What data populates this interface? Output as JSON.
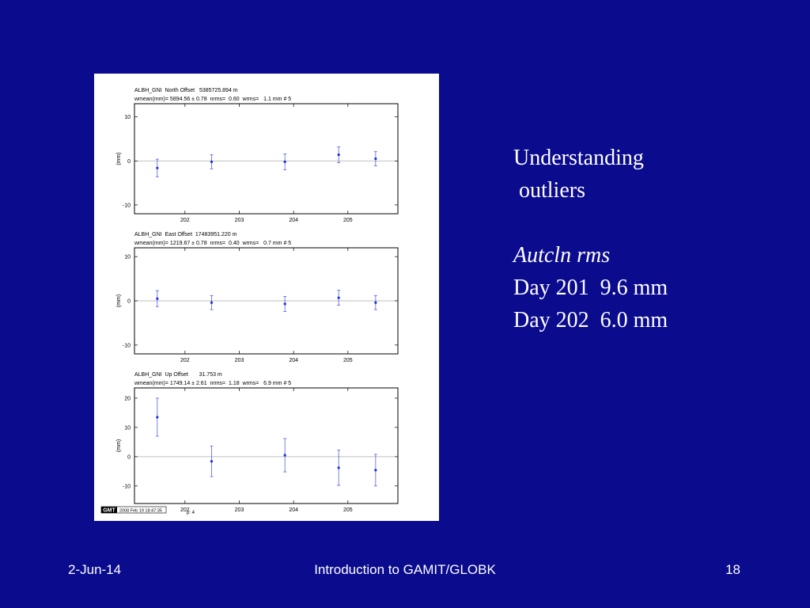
{
  "slide": {
    "heading": [
      "Understanding",
      "outliers"
    ],
    "subheading": "Autcln rms",
    "lines": [
      "Day 201  9.6 mm",
      "Day 202  6.0 mm"
    ],
    "footer": {
      "date": "2-Jun-14",
      "center": "Introduction to GAMIT/GLOBK",
      "page": "18"
    }
  },
  "plot_footer": {
    "logo": "GMT",
    "timestamp": "2008 Feb 19 18:47:35",
    "page": "p: 4"
  },
  "chart_data": [
    {
      "type": "errorbar",
      "title": "ALBH_GNI  North Offset   5385725.894 m",
      "subtitle": "wmean(mm)= 5894.56 ± 0.78  nrms=  0.60  wrms=   1.1 mm # 5",
      "ylabel": "(mm)",
      "xlim": [
        201.07,
        205.92
      ],
      "xticks": [
        202,
        203,
        204,
        205
      ],
      "ylim": [
        -12,
        13
      ],
      "yticks": [
        -10,
        0,
        10
      ],
      "x": [
        201.49,
        202.49,
        203.84,
        204.83,
        205.51
      ],
      "series": [
        {
          "color": "#1e2fd8",
          "values": [
            -1.6,
            -0.2,
            -0.2,
            1.4,
            0.5
          ],
          "errors": [
            2.0,
            1.6,
            1.8,
            1.8,
            1.6
          ]
        }
      ]
    },
    {
      "type": "errorbar",
      "title": "ALBH_GNI  East Offset  17483951.220 m",
      "subtitle": "wmean(mm)= 1219.67 ± 0.78  nrms=  0.40  wrms=   0.7 mm # 5",
      "ylabel": "(mm)",
      "xlim": [
        201.07,
        205.92
      ],
      "xticks": [
        202,
        203,
        204,
        205
      ],
      "ylim": [
        -12,
        12
      ],
      "yticks": [
        -10,
        0,
        10
      ],
      "x": [
        201.49,
        202.49,
        203.84,
        204.83,
        205.51
      ],
      "series": [
        {
          "color": "#1e2fd8",
          "values": [
            0.5,
            -0.4,
            -0.7,
            0.7,
            -0.4
          ],
          "errors": [
            1.8,
            1.6,
            1.7,
            1.7,
            1.6
          ]
        }
      ]
    },
    {
      "type": "errorbar",
      "title": "ALBH_GNI  Up Offset       31.753 m",
      "subtitle": "wmean(mm)= 1749.14 ± 2.61  nrms=  1.18  wrms=   6.9 mm # 5",
      "ylabel": "(mm)",
      "xlim": [
        201.07,
        205.92
      ],
      "xticks": [
        202,
        203,
        204,
        205
      ],
      "ylim": [
        -16,
        23.5
      ],
      "yticks": [
        -10,
        0,
        10,
        20
      ],
      "x": [
        201.49,
        202.49,
        203.84,
        204.83,
        205.51
      ],
      "series": [
        {
          "color": "#1e2fd8",
          "values": [
            13.5,
            -1.6,
            0.5,
            -3.8,
            -4.6
          ],
          "errors": [
            6.5,
            5.2,
            5.7,
            6.0,
            5.4
          ]
        }
      ]
    }
  ]
}
